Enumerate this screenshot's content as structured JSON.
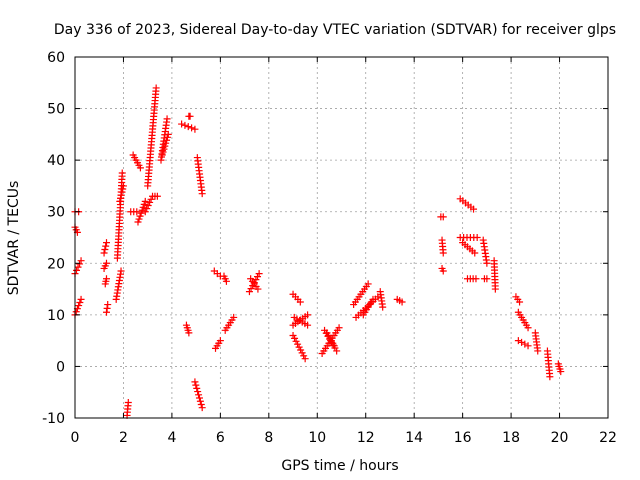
{
  "chart_data": {
    "type": "scatter",
    "title": "Day 336 of 2023, Sidereal Day-to-day VTEC variation (SDTVAR) for receiver glps",
    "xlabel": "GPS time / hours",
    "ylabel": "SDTVAR / TECUs",
    "xlim": [
      0,
      22
    ],
    "ylim": [
      -10,
      60
    ],
    "xticks": [
      "0",
      "2",
      "4",
      "6",
      "8",
      "10",
      "12",
      "14",
      "16",
      "18",
      "20",
      "22"
    ],
    "yticks": [
      "-10",
      "0",
      "10",
      "20",
      "30",
      "40",
      "50",
      "60"
    ],
    "grid": true,
    "marker": "+",
    "color": "#ff0000",
    "segments": [
      {
        "x": [
          0.0,
          0.1
        ],
        "y": [
          27,
          26
        ]
      },
      {
        "x": [
          0.0,
          0.15
        ],
        "y": [
          30,
          30
        ]
      },
      {
        "x": [
          0.0,
          0.25
        ],
        "y": [
          18,
          20.5
        ]
      },
      {
        "x": [
          0.0,
          0.25
        ],
        "y": [
          10,
          13
        ]
      },
      {
        "x": [
          1.2,
          1.3
        ],
        "y": [
          22,
          24
        ]
      },
      {
        "x": [
          1.2,
          1.3
        ],
        "y": [
          19,
          20
        ]
      },
      {
        "x": [
          1.25,
          1.3
        ],
        "y": [
          16,
          17
        ]
      },
      {
        "x": [
          1.3,
          1.35
        ],
        "y": [
          10.5,
          12
        ]
      },
      {
        "x": [
          1.7,
          1.9
        ],
        "y": [
          13,
          18.5
        ]
      },
      {
        "x": [
          1.75,
          1.95
        ],
        "y": [
          21,
          37.5
        ]
      },
      {
        "x": [
          1.85,
          2.0
        ],
        "y": [
          32,
          35
        ]
      },
      {
        "x": [
          2.15,
          2.2
        ],
        "y": [
          -9.5,
          -7
        ]
      },
      {
        "x": [
          2.3,
          2.55
        ],
        "y": [
          30,
          30
        ]
      },
      {
        "x": [
          2.4,
          2.7
        ],
        "y": [
          41,
          38.5
        ]
      },
      {
        "x": [
          2.6,
          2.9
        ],
        "y": [
          28,
          32
        ]
      },
      {
        "x": [
          2.9,
          3.2
        ],
        "y": [
          30,
          33
        ]
      },
      {
        "x": [
          3.0,
          3.35
        ],
        "y": [
          35,
          54
        ]
      },
      {
        "x": [
          3.3,
          3.4
        ],
        "y": [
          33,
          33
        ]
      },
      {
        "x": [
          3.55,
          3.8
        ],
        "y": [
          40,
          48
        ]
      },
      {
        "x": [
          3.6,
          3.85
        ],
        "y": [
          41,
          45
        ]
      },
      {
        "x": [
          4.4,
          4.95
        ],
        "y": [
          47,
          46
        ]
      },
      {
        "x": [
          4.7,
          4.75
        ],
        "y": [
          48.5,
          48.5
        ]
      },
      {
        "x": [
          5.05,
          5.25
        ],
        "y": [
          40.5,
          33.5
        ]
      },
      {
        "x": [
          4.6,
          4.7
        ],
        "y": [
          8,
          6.5
        ]
      },
      {
        "x": [
          4.95,
          5.25
        ],
        "y": [
          -3,
          -8
        ]
      },
      {
        "x": [
          5.75,
          6.0
        ],
        "y": [
          18.5,
          17.5
        ]
      },
      {
        "x": [
          6.15,
          6.25
        ],
        "y": [
          17.5,
          16.5
        ]
      },
      {
        "x": [
          5.8,
          6.0
        ],
        "y": [
          3.5,
          5
        ]
      },
      {
        "x": [
          6.2,
          6.55
        ],
        "y": [
          7,
          9.5
        ]
      },
      {
        "x": [
          7.2,
          7.6
        ],
        "y": [
          14.5,
          18
        ]
      },
      {
        "x": [
          7.25,
          7.55
        ],
        "y": [
          17,
          15
        ]
      },
      {
        "x": [
          9.0,
          9.3
        ],
        "y": [
          14,
          12.5
        ]
      },
      {
        "x": [
          9.0,
          9.6
        ],
        "y": [
          8,
          10
        ]
      },
      {
        "x": [
          9.05,
          9.6
        ],
        "y": [
          9.5,
          8
        ]
      },
      {
        "x": [
          9.0,
          9.5
        ],
        "y": [
          6,
          1.5
        ]
      },
      {
        "x": [
          10.2,
          10.9
        ],
        "y": [
          2.5,
          7.5
        ]
      },
      {
        "x": [
          10.3,
          10.8
        ],
        "y": [
          7,
          3
        ]
      },
      {
        "x": [
          10.4,
          10.7
        ],
        "y": [
          6.5,
          4
        ]
      },
      {
        "x": [
          11.5,
          12.1
        ],
        "y": [
          12,
          16
        ]
      },
      {
        "x": [
          11.6,
          12.5
        ],
        "y": [
          9.5,
          13.5
        ]
      },
      {
        "x": [
          11.9,
          12.3
        ],
        "y": [
          10,
          13
        ]
      },
      {
        "x": [
          12.6,
          12.7
        ],
        "y": [
          14.5,
          11.5
        ]
      },
      {
        "x": [
          13.3,
          13.5
        ],
        "y": [
          13,
          12.5
        ]
      },
      {
        "x": [
          15.1,
          15.2
        ],
        "y": [
          29,
          29
        ]
      },
      {
        "x": [
          15.15,
          15.2
        ],
        "y": [
          24.5,
          22
        ]
      },
      {
        "x": [
          15.15,
          15.2
        ],
        "y": [
          19,
          18.5
        ]
      },
      {
        "x": [
          15.9,
          16.45
        ],
        "y": [
          32.5,
          30.5
        ]
      },
      {
        "x": [
          15.9,
          16.6
        ],
        "y": [
          25,
          25
        ]
      },
      {
        "x": [
          16.0,
          16.5
        ],
        "y": [
          24,
          22
        ]
      },
      {
        "x": [
          16.2,
          16.55
        ],
        "y": [
          17,
          17
        ]
      },
      {
        "x": [
          16.85,
          17.0
        ],
        "y": [
          24.5,
          20
        ]
      },
      {
        "x": [
          16.9,
          17.0
        ],
        "y": [
          17,
          17
        ]
      },
      {
        "x": [
          17.3,
          17.35
        ],
        "y": [
          20.5,
          15
        ]
      },
      {
        "x": [
          18.2,
          18.35
        ],
        "y": [
          13.5,
          12.5
        ]
      },
      {
        "x": [
          18.3,
          18.7
        ],
        "y": [
          10.5,
          7.5
        ]
      },
      {
        "x": [
          18.3,
          18.7
        ],
        "y": [
          5,
          4
        ]
      },
      {
        "x": [
          19.0,
          19.1
        ],
        "y": [
          6.5,
          3
        ]
      },
      {
        "x": [
          19.5,
          19.6
        ],
        "y": [
          3,
          -2
        ]
      },
      {
        "x": [
          19.95,
          20.05
        ],
        "y": [
          0.5,
          -1
        ]
      }
    ]
  }
}
